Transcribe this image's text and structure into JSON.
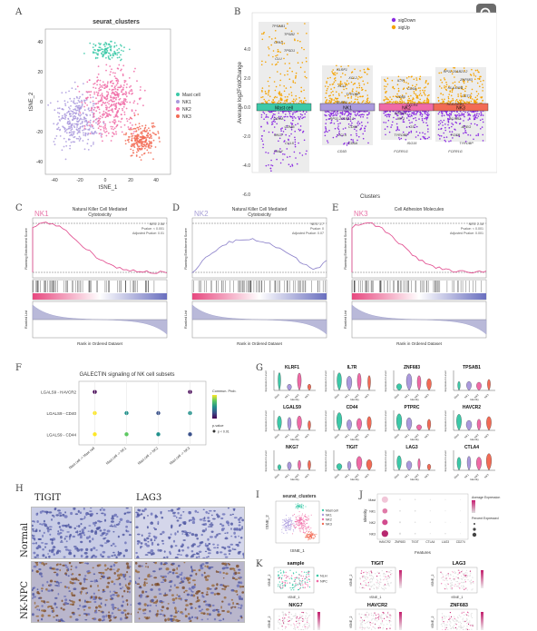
{
  "panel_labels": [
    "A",
    "B",
    "C",
    "D",
    "E",
    "F",
    "G",
    "H",
    "I",
    "J",
    "K"
  ],
  "zoom_icon": "magnify-icon",
  "panelA": {
    "title": "seurat_clusters",
    "xlabel": "tSNE_1",
    "ylabel": "tSNE_2",
    "xticks": [
      "-40",
      "-20",
      "0",
      "20",
      "40"
    ],
    "yticks": [
      "40",
      "20",
      "0",
      "-20",
      "-40"
    ],
    "legend": [
      {
        "label": "Mast cell",
        "color": "#3cc9a8"
      },
      {
        "label": "NK1",
        "color": "#aa99dd"
      },
      {
        "label": "NK2",
        "color": "#f06aa6"
      },
      {
        "label": "NK3",
        "color": "#f26b55"
      }
    ]
  },
  "panelB": {
    "ylabel": "Average log2FoldChange",
    "xlabel": "Clusters",
    "yticks": [
      "4.0",
      "2.0",
      "0.0",
      "-2.0",
      "-4.0",
      "-6.0"
    ],
    "legend": [
      {
        "label": "sigDown",
        "color": "#8a2be2"
      },
      {
        "label": "sigUp",
        "color": "#f5a300"
      }
    ],
    "clusters": [
      {
        "name": "Mast cell",
        "color": "#3cc9a8",
        "up_genes": [
          "TPSAB1",
          "TPSB2",
          "CPA3",
          "TPSD1",
          "CLU"
        ],
        "down_genes": [
          "GZMA",
          "GZMB",
          "NKG7",
          "CCL5",
          "GNLY"
        ]
      },
      {
        "name": "NK1",
        "color": "#aa99dd",
        "up_genes": [
          "KLRF1",
          "XCL2",
          "XCL1",
          "TYROBP",
          "KLRB1"
        ],
        "down_genes": [
          "RP11-291B21.2",
          "CD69",
          "CCL4",
          "CD6A",
          "CD3D"
        ]
      },
      {
        "name": "NK2",
        "color": "#f06aa6",
        "up_genes": [
          "IL7R",
          "CD5A",
          "CD85",
          "CXCR4",
          "MSGDL"
        ],
        "down_genes": [
          "IRF1",
          "GS",
          "TYROBP",
          "ISG15",
          "FCER1G"
        ]
      },
      {
        "name": "NK3",
        "color": "#f26b55",
        "up_genes": [
          "RP11-291B21.2",
          "ZNF683",
          "HLA-DRB",
          "CST7",
          "HLA-DRB1"
        ],
        "down_genes": [
          "KLRB1",
          "AREG",
          "FGSB",
          "TYROBP",
          "FCER1G"
        ]
      }
    ]
  },
  "gsea": [
    {
      "tag": "NK1",
      "title": "Natural Killer Cell Mediated Cytotoxicity",
      "stats": [
        "NES: 2.56",
        "Pvalue: < 0.001",
        "Adjusted Pvalue: 0.01"
      ],
      "color": "#e0458a"
    },
    {
      "tag": "NK2",
      "title": "Natural Killer Cell Mediated Cytotoxicity",
      "stats": [
        "NES: 1.7",
        "Pvalue: 0",
        "Adjusted Pvalue: 0.07"
      ],
      "color": "#8a7fc9"
    },
    {
      "tag": "NK3",
      "title": "Cell Adhesion Molecules",
      "stats": [
        "NES: 2.18",
        "Pvalue: < 0.001",
        "Adjusted Pvalue: 0.001"
      ],
      "color": "#e0458a"
    }
  ],
  "gsea_axis": {
    "ylabel_top": "Running Enrichment Score",
    "ylabel_bottom": "Ranked List",
    "xlabel": "Rank in Ordered Dataset"
  },
  "panelF": {
    "title": "GALECTIN signaling of NK cell subsets",
    "rows": [
      "LGALS9 - HAVCR2",
      "LGALS9 - CD40",
      "LGALS9 - CD44"
    ],
    "cols": [
      "Mast cell -> Mast cell",
      "Mast cell -> NK1",
      "Mast cell -> NK2",
      "Mast cell -> NK3"
    ],
    "legend_title": "Commun. Prob.",
    "legend2": "p-value",
    "legend2_value": "p < 0.01"
  },
  "panelG": {
    "genes": [
      "KLRF1",
      "IL7R",
      "ZNF683",
      "TPSAB1",
      "LGALS9",
      "CD44",
      "PTPRC",
      "HAVCR2",
      "NKG7",
      "TIGIT",
      "LAG3",
      "CTLA4"
    ],
    "ylabel": "Expression Level",
    "xlabel": "Identity",
    "groups": [
      "Mast",
      "NK1",
      "NK2",
      "NK3"
    ]
  },
  "panelH": {
    "genes": [
      "TIGIT",
      "LAG3"
    ],
    "rows": [
      "Normal",
      "NK-NPC"
    ]
  },
  "panelI": {
    "title": "seurat_clusters",
    "xlabel": "tSNE_1",
    "ylabel": "tSNE_2"
  },
  "panelJ": {
    "xlabel": "Features",
    "ylabel": "Identity",
    "features": [
      "HAVCR2",
      "ZNF683",
      "TIGIT",
      "CTLA4",
      "LAG3",
      "CD274"
    ],
    "legend1": "Average Expression",
    "legend2": "Percent Expressed"
  },
  "panelK": {
    "plots": [
      {
        "title": "sample"
      },
      {
        "title": "TIGIT"
      },
      {
        "title": "LAG3"
      },
      {
        "title": "NKG7"
      },
      {
        "title": "HAVCR2"
      },
      {
        "title": "ZNF683"
      }
    ],
    "sample_legend": [
      "NLH",
      "NPC"
    ],
    "xlabel": "tSNE_1",
    "ylabel": "tSNE_2"
  }
}
